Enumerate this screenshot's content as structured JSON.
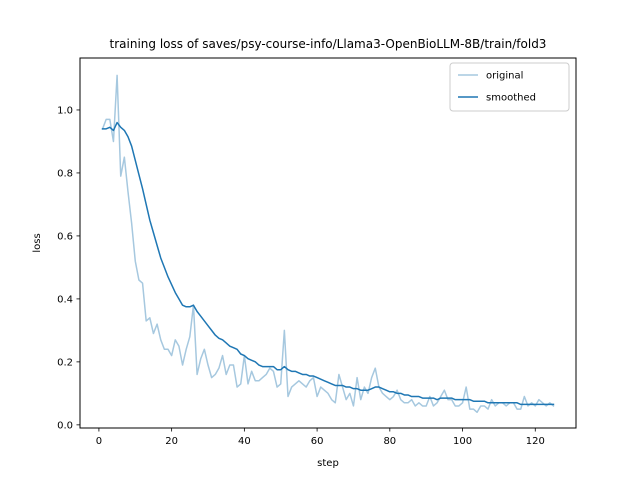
{
  "chart_data": {
    "type": "line",
    "title": "training loss of saves/psy-course-info/Llama3-OpenBioLLM-8B/train/fold3",
    "xlabel": "step",
    "ylabel": "loss",
    "xlim": [
      -5.2,
      131.2
    ],
    "ylim": [
      -0.01,
      1.165
    ],
    "xticks": [
      0,
      20,
      40,
      60,
      80,
      100,
      120
    ],
    "yticks": [
      0.0,
      0.2,
      0.4,
      0.6,
      0.8,
      1.0
    ],
    "ytick_labels": [
      "0.0",
      "0.2",
      "0.4",
      "0.6",
      "0.8",
      "1.0"
    ],
    "grid": false,
    "legend": "top-right",
    "series": [
      {
        "name": "original",
        "color": "#a6c8df",
        "x": [
          1,
          2,
          3,
          4,
          5,
          6,
          7,
          8,
          9,
          10,
          11,
          12,
          13,
          14,
          15,
          16,
          17,
          18,
          19,
          20,
          21,
          22,
          23,
          24,
          25,
          26,
          27,
          28,
          29,
          30,
          31,
          32,
          33,
          34,
          35,
          36,
          37,
          38,
          39,
          40,
          41,
          42,
          43,
          44,
          45,
          46,
          47,
          48,
          49,
          50,
          51,
          52,
          53,
          54,
          55,
          56,
          57,
          58,
          59,
          60,
          61,
          62,
          63,
          64,
          65,
          66,
          67,
          68,
          69,
          70,
          71,
          72,
          73,
          74,
          75,
          76,
          77,
          78,
          79,
          80,
          81,
          82,
          83,
          84,
          85,
          86,
          87,
          88,
          89,
          90,
          91,
          92,
          93,
          94,
          95,
          96,
          97,
          98,
          99,
          100,
          101,
          102,
          103,
          104,
          105,
          106,
          107,
          108,
          109,
          110,
          111,
          112,
          113,
          114,
          115,
          116,
          117,
          118,
          119,
          120,
          121,
          122,
          123,
          124,
          125
        ],
        "y": [
          0.94,
          0.97,
          0.97,
          0.9,
          1.11,
          0.79,
          0.85,
          0.74,
          0.64,
          0.52,
          0.46,
          0.45,
          0.33,
          0.34,
          0.29,
          0.32,
          0.27,
          0.24,
          0.24,
          0.22,
          0.27,
          0.25,
          0.19,
          0.24,
          0.28,
          0.38,
          0.16,
          0.21,
          0.24,
          0.19,
          0.15,
          0.16,
          0.18,
          0.22,
          0.16,
          0.19,
          0.19,
          0.12,
          0.13,
          0.22,
          0.13,
          0.17,
          0.14,
          0.14,
          0.15,
          0.16,
          0.18,
          0.17,
          0.12,
          0.13,
          0.3,
          0.09,
          0.12,
          0.13,
          0.14,
          0.13,
          0.12,
          0.14,
          0.15,
          0.09,
          0.12,
          0.11,
          0.1,
          0.08,
          0.07,
          0.16,
          0.12,
          0.08,
          0.1,
          0.06,
          0.15,
          0.08,
          0.12,
          0.1,
          0.15,
          0.18,
          0.12,
          0.1,
          0.09,
          0.08,
          0.09,
          0.11,
          0.08,
          0.07,
          0.07,
          0.08,
          0.06,
          0.07,
          0.06,
          0.06,
          0.09,
          0.06,
          0.07,
          0.09,
          0.11,
          0.08,
          0.08,
          0.06,
          0.06,
          0.07,
          0.12,
          0.05,
          0.05,
          0.04,
          0.06,
          0.06,
          0.05,
          0.08,
          0.06,
          0.07,
          0.07,
          0.06,
          0.07,
          0.07,
          0.05,
          0.05,
          0.09,
          0.06,
          0.07,
          0.06,
          0.08,
          0.07,
          0.06,
          0.07,
          0.06
        ]
      },
      {
        "name": "smoothed",
        "color": "#1f77b4",
        "x": [
          1,
          2,
          3,
          4,
          5,
          6,
          7,
          8,
          9,
          10,
          11,
          12,
          13,
          14,
          15,
          16,
          17,
          18,
          19,
          20,
          21,
          22,
          23,
          24,
          25,
          26,
          27,
          28,
          29,
          30,
          31,
          32,
          33,
          34,
          35,
          36,
          37,
          38,
          39,
          40,
          41,
          42,
          43,
          44,
          45,
          46,
          47,
          48,
          49,
          50,
          51,
          52,
          53,
          54,
          55,
          56,
          57,
          58,
          59,
          60,
          61,
          62,
          63,
          64,
          65,
          66,
          67,
          68,
          69,
          70,
          71,
          72,
          73,
          74,
          75,
          76,
          77,
          78,
          79,
          80,
          81,
          82,
          83,
          84,
          85,
          86,
          87,
          88,
          89,
          90,
          91,
          92,
          93,
          94,
          95,
          96,
          97,
          98,
          99,
          100,
          101,
          102,
          103,
          104,
          105,
          106,
          107,
          108,
          109,
          110,
          111,
          112,
          113,
          114,
          115,
          116,
          117,
          118,
          119,
          120,
          121,
          122,
          123,
          124,
          125
        ],
        "y": [
          0.94,
          0.94,
          0.945,
          0.935,
          0.96,
          0.945,
          0.935,
          0.915,
          0.885,
          0.84,
          0.795,
          0.75,
          0.7,
          0.65,
          0.61,
          0.57,
          0.53,
          0.5,
          0.47,
          0.445,
          0.42,
          0.4,
          0.38,
          0.375,
          0.375,
          0.38,
          0.36,
          0.345,
          0.33,
          0.315,
          0.3,
          0.285,
          0.275,
          0.27,
          0.26,
          0.25,
          0.245,
          0.24,
          0.225,
          0.22,
          0.21,
          0.205,
          0.2,
          0.19,
          0.185,
          0.185,
          0.185,
          0.185,
          0.175,
          0.175,
          0.185,
          0.175,
          0.17,
          0.17,
          0.165,
          0.16,
          0.16,
          0.155,
          0.155,
          0.15,
          0.145,
          0.14,
          0.135,
          0.13,
          0.125,
          0.125,
          0.125,
          0.12,
          0.12,
          0.115,
          0.115,
          0.11,
          0.11,
          0.11,
          0.115,
          0.12,
          0.12,
          0.115,
          0.11,
          0.105,
          0.105,
          0.1,
          0.1,
          0.095,
          0.095,
          0.09,
          0.09,
          0.09,
          0.085,
          0.085,
          0.085,
          0.085,
          0.08,
          0.085,
          0.085,
          0.085,
          0.085,
          0.08,
          0.08,
          0.08,
          0.08,
          0.08,
          0.075,
          0.075,
          0.075,
          0.075,
          0.07,
          0.07,
          0.07,
          0.07,
          0.07,
          0.07,
          0.07,
          0.07,
          0.07,
          0.065,
          0.065,
          0.065,
          0.065,
          0.065,
          0.065,
          0.065,
          0.065,
          0.065,
          0.065
        ]
      }
    ]
  }
}
